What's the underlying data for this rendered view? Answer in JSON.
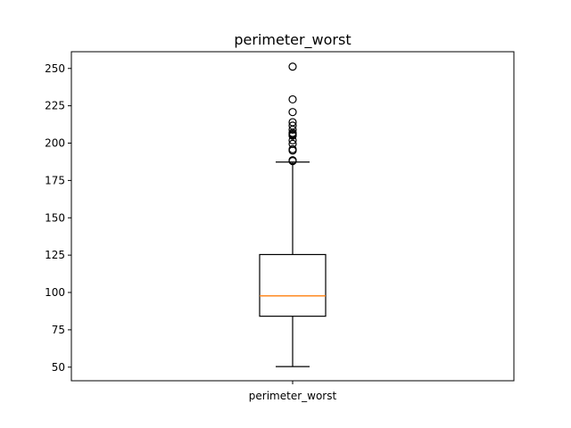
{
  "chart_data": {
    "type": "box",
    "title": "perimeter_worst",
    "categories": [
      "perimeter_worst"
    ],
    "ylim": [
      40.9,
      261.2
    ],
    "yticks": [
      50,
      75,
      100,
      125,
      150,
      175,
      200,
      225,
      250
    ],
    "grid": false,
    "box": {
      "whisker_low": 50.4,
      "q1": 84.1,
      "median": 97.7,
      "q3": 125.4,
      "whisker_high": 187.3,
      "outliers": [
        188.0,
        188.5,
        195.0,
        195.9,
        199.5,
        201.9,
        205.0,
        205.7,
        206.0,
        206.8,
        209.0,
        211.7,
        214.0,
        220.8,
        229.3,
        251.2
      ]
    }
  }
}
